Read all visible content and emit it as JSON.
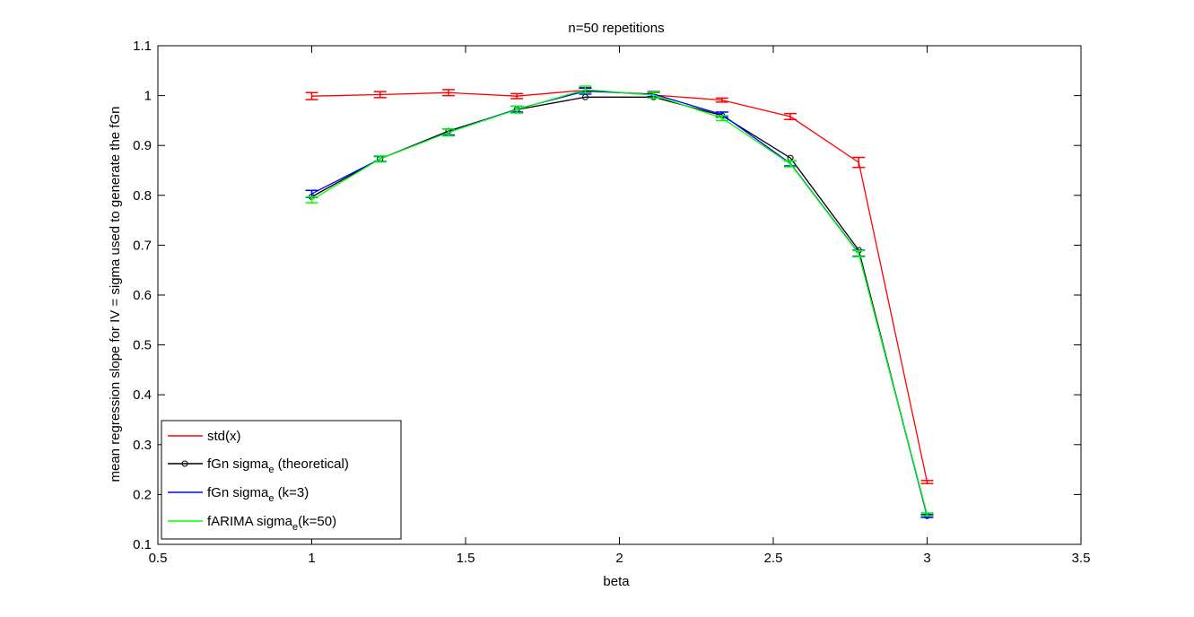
{
  "chart_data": {
    "type": "line",
    "title": "n=50 repetitions",
    "xlabel": "beta",
    "ylabel": "mean regression slope for IV = sigma used to generate the fGn",
    "xlim": [
      0.5,
      3.5
    ],
    "ylim": [
      0.1,
      1.1
    ],
    "xticks": [
      0.5,
      1,
      1.5,
      2,
      2.5,
      3,
      3.5
    ],
    "xtick_labels": [
      "0.5",
      "1",
      "1.5",
      "2",
      "2.5",
      "3",
      "3.5"
    ],
    "yticks": [
      0.1,
      0.2,
      0.3,
      0.4,
      0.5,
      0.6,
      0.7,
      0.8,
      0.9,
      1.0,
      1.1
    ],
    "ytick_labels": [
      "0.1",
      "0.2",
      "0.3",
      "0.4",
      "0.5",
      "0.6",
      "0.7",
      "0.8",
      "0.9",
      "1",
      "1.1"
    ],
    "grid": false,
    "legend_position": "bottom-left",
    "x": [
      1.0,
      1.2222,
      1.4444,
      1.6667,
      1.8889,
      2.1111,
      2.3333,
      2.5556,
      2.7778,
      3.0
    ],
    "series": [
      {
        "name": "std(x)",
        "legend_main": "std(x)",
        "legend_sub": "",
        "legend_tail": "",
        "color": "#ff0000",
        "marker": "none",
        "errorbars": true,
        "values": [
          0.999,
          1.002,
          1.006,
          0.999,
          1.011,
          1.001,
          0.991,
          0.958,
          0.866,
          0.225
        ],
        "err": [
          0.007,
          0.006,
          0.006,
          0.005,
          0.005,
          0.005,
          0.004,
          0.006,
          0.01,
          0.003
        ]
      },
      {
        "name": "fGn sigma_e (theoretical)",
        "legend_main": "fGn sigma",
        "legend_sub": "e",
        "legend_tail": " (theoretical)",
        "color": "#000000",
        "marker": "circle",
        "errorbars": false,
        "values": [
          0.797,
          0.873,
          0.929,
          0.972,
          0.997,
          0.997,
          0.96,
          0.875,
          0.69,
          0.157
        ],
        "err": []
      },
      {
        "name": "fGn sigma_e (k=3)",
        "legend_main": "fGn sigma",
        "legend_sub": "e",
        "legend_tail": " (k=3)",
        "color": "#0000ff",
        "marker": "none",
        "errorbars": true,
        "values": [
          0.803,
          0.873,
          0.927,
          0.973,
          1.009,
          1.003,
          0.962,
          0.864,
          0.684,
          0.157
        ],
        "err": [
          0.007,
          0.005,
          0.006,
          0.006,
          0.006,
          0.005,
          0.005,
          0.005,
          0.006,
          0.003
        ]
      },
      {
        "name": "fARIMA sigma_e(k=50)",
        "legend_main": "fARIMA sigma",
        "legend_sub": "e",
        "legend_tail": "(k=50)",
        "color": "#00ff00",
        "marker": "none",
        "errorbars": true,
        "values": [
          0.791,
          0.873,
          0.926,
          0.972,
          1.012,
          1.001,
          0.955,
          0.863,
          0.683,
          0.16
        ],
        "err": [
          0.006,
          0.006,
          0.007,
          0.007,
          0.007,
          0.006,
          0.005,
          0.006,
          0.006,
          0.003
        ]
      }
    ]
  }
}
